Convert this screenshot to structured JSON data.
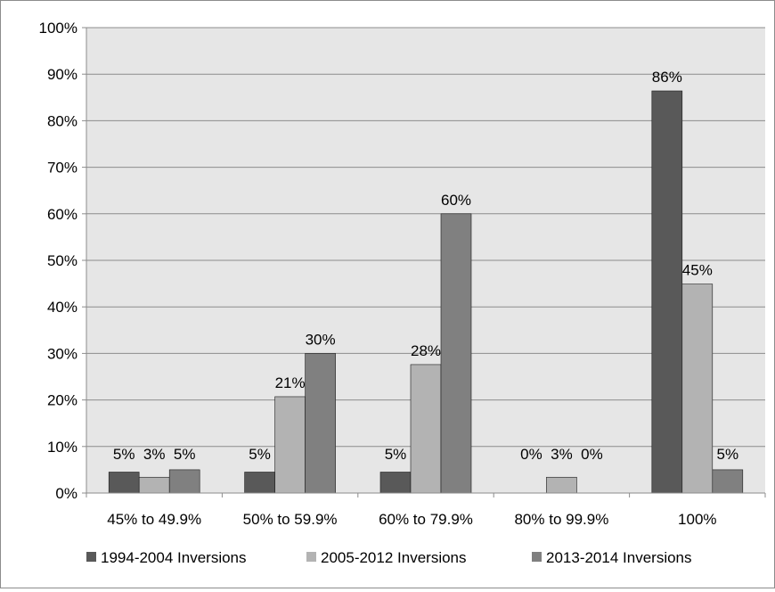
{
  "chart_data": {
    "type": "bar",
    "title": "",
    "xlabel": "",
    "ylabel": "",
    "categories": [
      "45% to 49.9%",
      "50% to 59.9%",
      "60% to 79.9%",
      "80% to 99.9%",
      "100%"
    ],
    "series": [
      {
        "name": "1994-2004 Inversions",
        "values": [
          4.5,
          4.5,
          4.5,
          0,
          86.4
        ],
        "labels": [
          "5%",
          "5%",
          "5%",
          "0%",
          "86%"
        ]
      },
      {
        "name": "2005-2012 Inversions",
        "values": [
          3.4,
          20.7,
          27.6,
          3.4,
          44.9
        ],
        "labels": [
          "3%",
          "21%",
          "28%",
          "3%",
          "45%"
        ]
      },
      {
        "name": "2013-2014 Inversions",
        "values": [
          5.0,
          30.0,
          60.0,
          0,
          5.0
        ],
        "labels": [
          "5%",
          "30%",
          "60%",
          "0%",
          "5%"
        ]
      }
    ],
    "ylim": [
      0,
      100
    ],
    "yticks": [
      "0%",
      "10%",
      "20%",
      "30%",
      "40%",
      "50%",
      "60%",
      "70%",
      "80%",
      "90%",
      "100%"
    ],
    "grid": true,
    "legend_position": "bottom",
    "colors": {
      "series": [
        "#595959",
        "#b3b3b3",
        "#808080"
      ],
      "plot_background": "#e6e6e6",
      "gridline": "#8c8c8c",
      "bar_outline": "#1a1a1a"
    }
  }
}
